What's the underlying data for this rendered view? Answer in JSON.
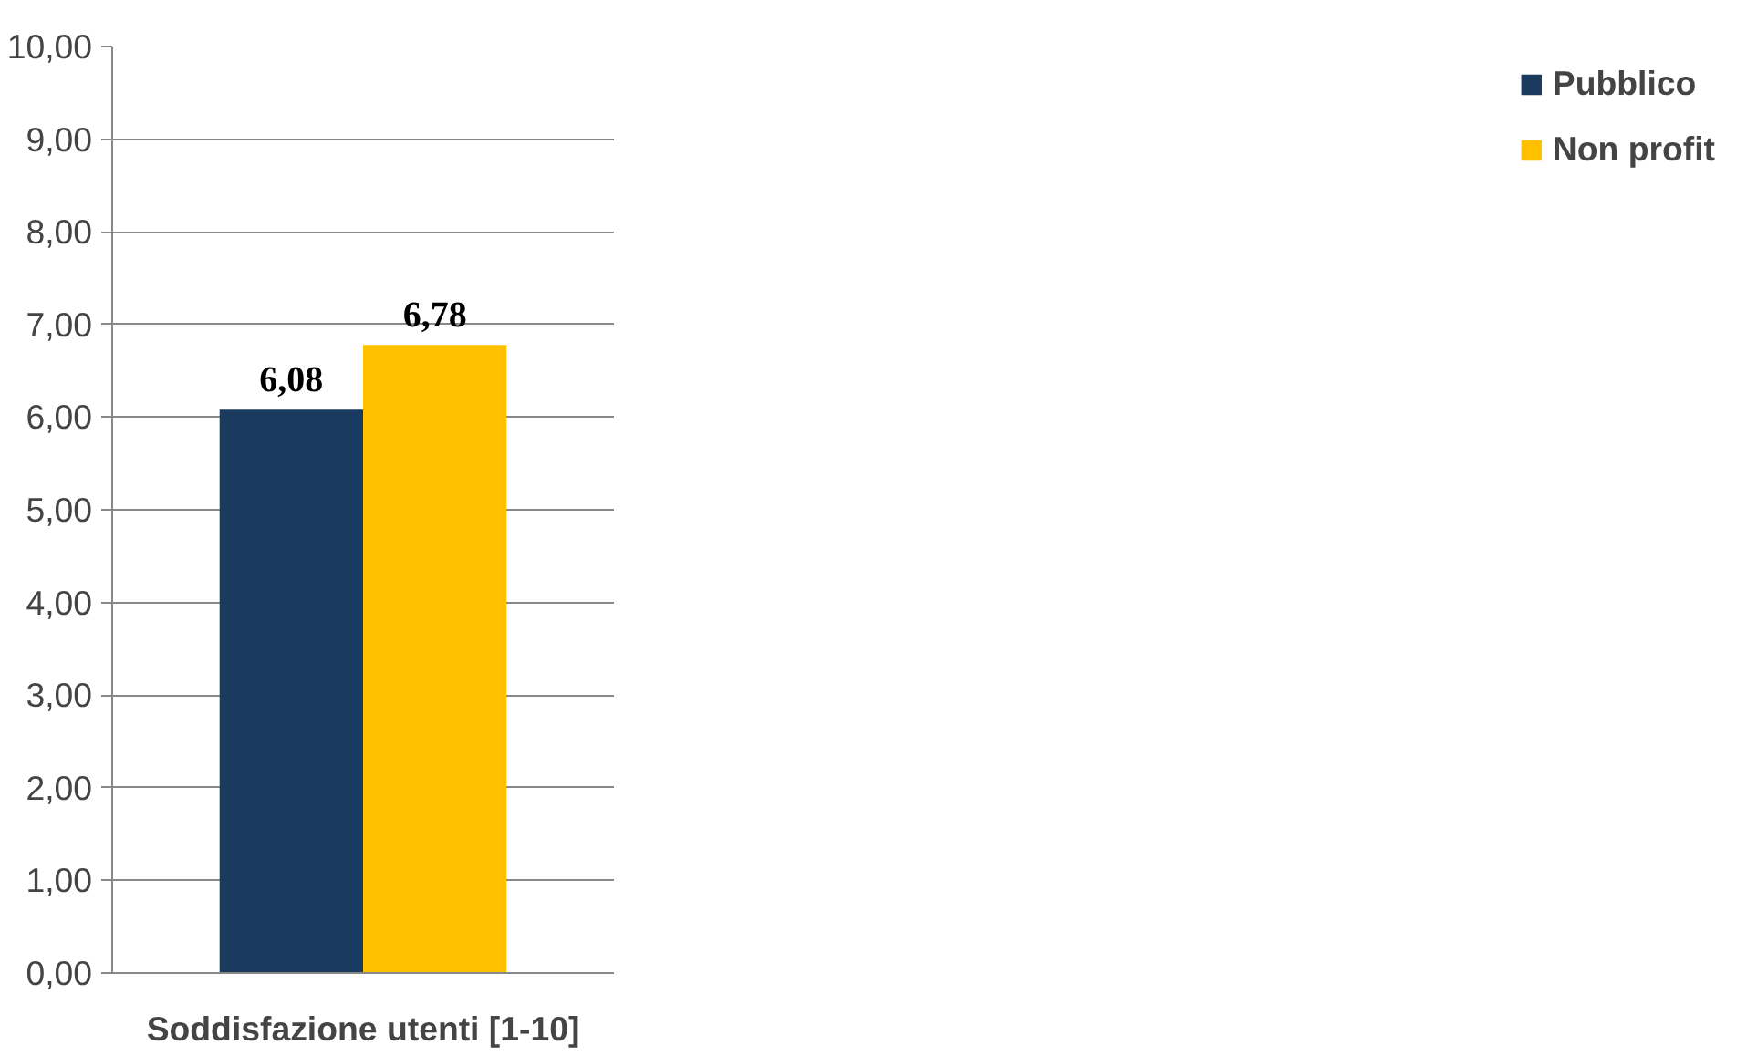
{
  "chart_data": {
    "type": "bar",
    "categories": [
      "Soddisfazione utenti [1-10]"
    ],
    "series": [
      {
        "name": "Pubblico",
        "color": "#1b3a5f",
        "values": [
          6.08
        ],
        "value_labels": [
          "6,08"
        ]
      },
      {
        "name": "Non profit",
        "color": "#ffc000",
        "values": [
          6.78
        ],
        "value_labels": [
          "6,78"
        ]
      }
    ],
    "ylim": [
      0,
      10
    ],
    "yticks": [
      {
        "value": 0,
        "label": "0,00"
      },
      {
        "value": 1,
        "label": "1,00"
      },
      {
        "value": 2,
        "label": "2,00"
      },
      {
        "value": 3,
        "label": "3,00"
      },
      {
        "value": 4,
        "label": "4,00"
      },
      {
        "value": 5,
        "label": "5,00"
      },
      {
        "value": 6,
        "label": "6,00"
      },
      {
        "value": 7,
        "label": "7,00"
      },
      {
        "value": 8,
        "label": "8,00"
      },
      {
        "value": 9,
        "label": "9,00"
      },
      {
        "value": 10,
        "label": "10,00"
      }
    ],
    "grid": "y",
    "legend": "right"
  }
}
